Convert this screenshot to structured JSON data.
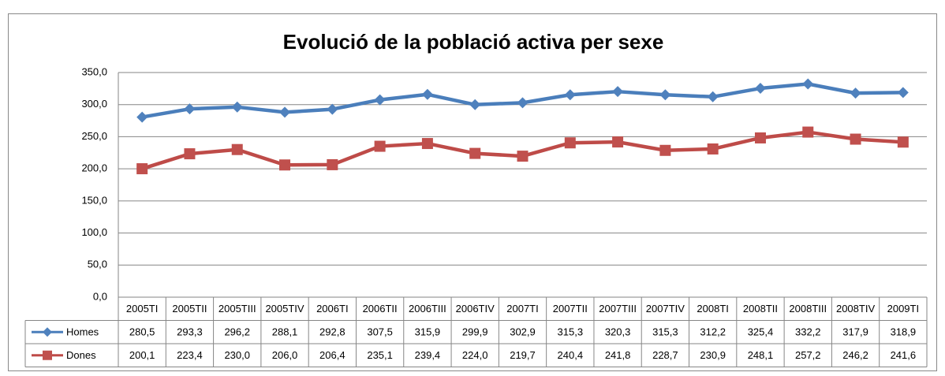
{
  "chart_data": {
    "type": "line",
    "title": "Evolució de la població activa per sexe",
    "categories": [
      "2005TI",
      "2005TII",
      "2005TIII",
      "2005TIV",
      "2006TI",
      "2006TII",
      "2006TIII",
      "2006TIV",
      "2007TI",
      "2007TII",
      "2007TIII",
      "2007TIV",
      "2008TI",
      "2008TII",
      "2008TIII",
      "2008TIV",
      "2009TI"
    ],
    "series": [
      {
        "name": "Homes",
        "color": "#4a7ebb",
        "marker_color": "#4f81bd",
        "marker": "diamond",
        "values": [
          280.5,
          293.3,
          296.2,
          288.1,
          292.8,
          307.5,
          315.9,
          299.9,
          302.9,
          315.3,
          320.3,
          315.3,
          312.2,
          325.4,
          332.2,
          317.9,
          318.9
        ],
        "value_labels": [
          "280,5",
          "293,3",
          "296,2",
          "288,1",
          "292,8",
          "307,5",
          "315,9",
          "299,9",
          "302,9",
          "315,3",
          "320,3",
          "315,3",
          "312,2",
          "325,4",
          "332,2",
          "317,9",
          "318,9"
        ]
      },
      {
        "name": "Dones",
        "color": "#be4b48",
        "marker_color": "#c0504d",
        "marker": "square",
        "values": [
          200.1,
          223.4,
          230.0,
          206.0,
          206.4,
          235.1,
          239.4,
          224.0,
          219.7,
          240.4,
          241.8,
          228.7,
          230.9,
          248.1,
          257.2,
          246.2,
          241.6
        ],
        "value_labels": [
          "200,1",
          "223,4",
          "230,0",
          "206,0",
          "206,4",
          "235,1",
          "239,4",
          "224,0",
          "219,7",
          "240,4",
          "241,8",
          "228,7",
          "230,9",
          "248,1",
          "257,2",
          "246,2",
          "241,6"
        ]
      }
    ],
    "ylim": [
      0,
      350
    ],
    "yticks": [
      {
        "value": 0,
        "label": "0,0"
      },
      {
        "value": 50,
        "label": "50,0"
      },
      {
        "value": 100,
        "label": "100,0"
      },
      {
        "value": 150,
        "label": "150,0"
      },
      {
        "value": 200,
        "label": "200,0"
      },
      {
        "value": 250,
        "label": "250,0"
      },
      {
        "value": 300,
        "label": "300,0"
      },
      {
        "value": 350,
        "label": "350,0"
      }
    ],
    "grid": true,
    "data_table": true
  }
}
